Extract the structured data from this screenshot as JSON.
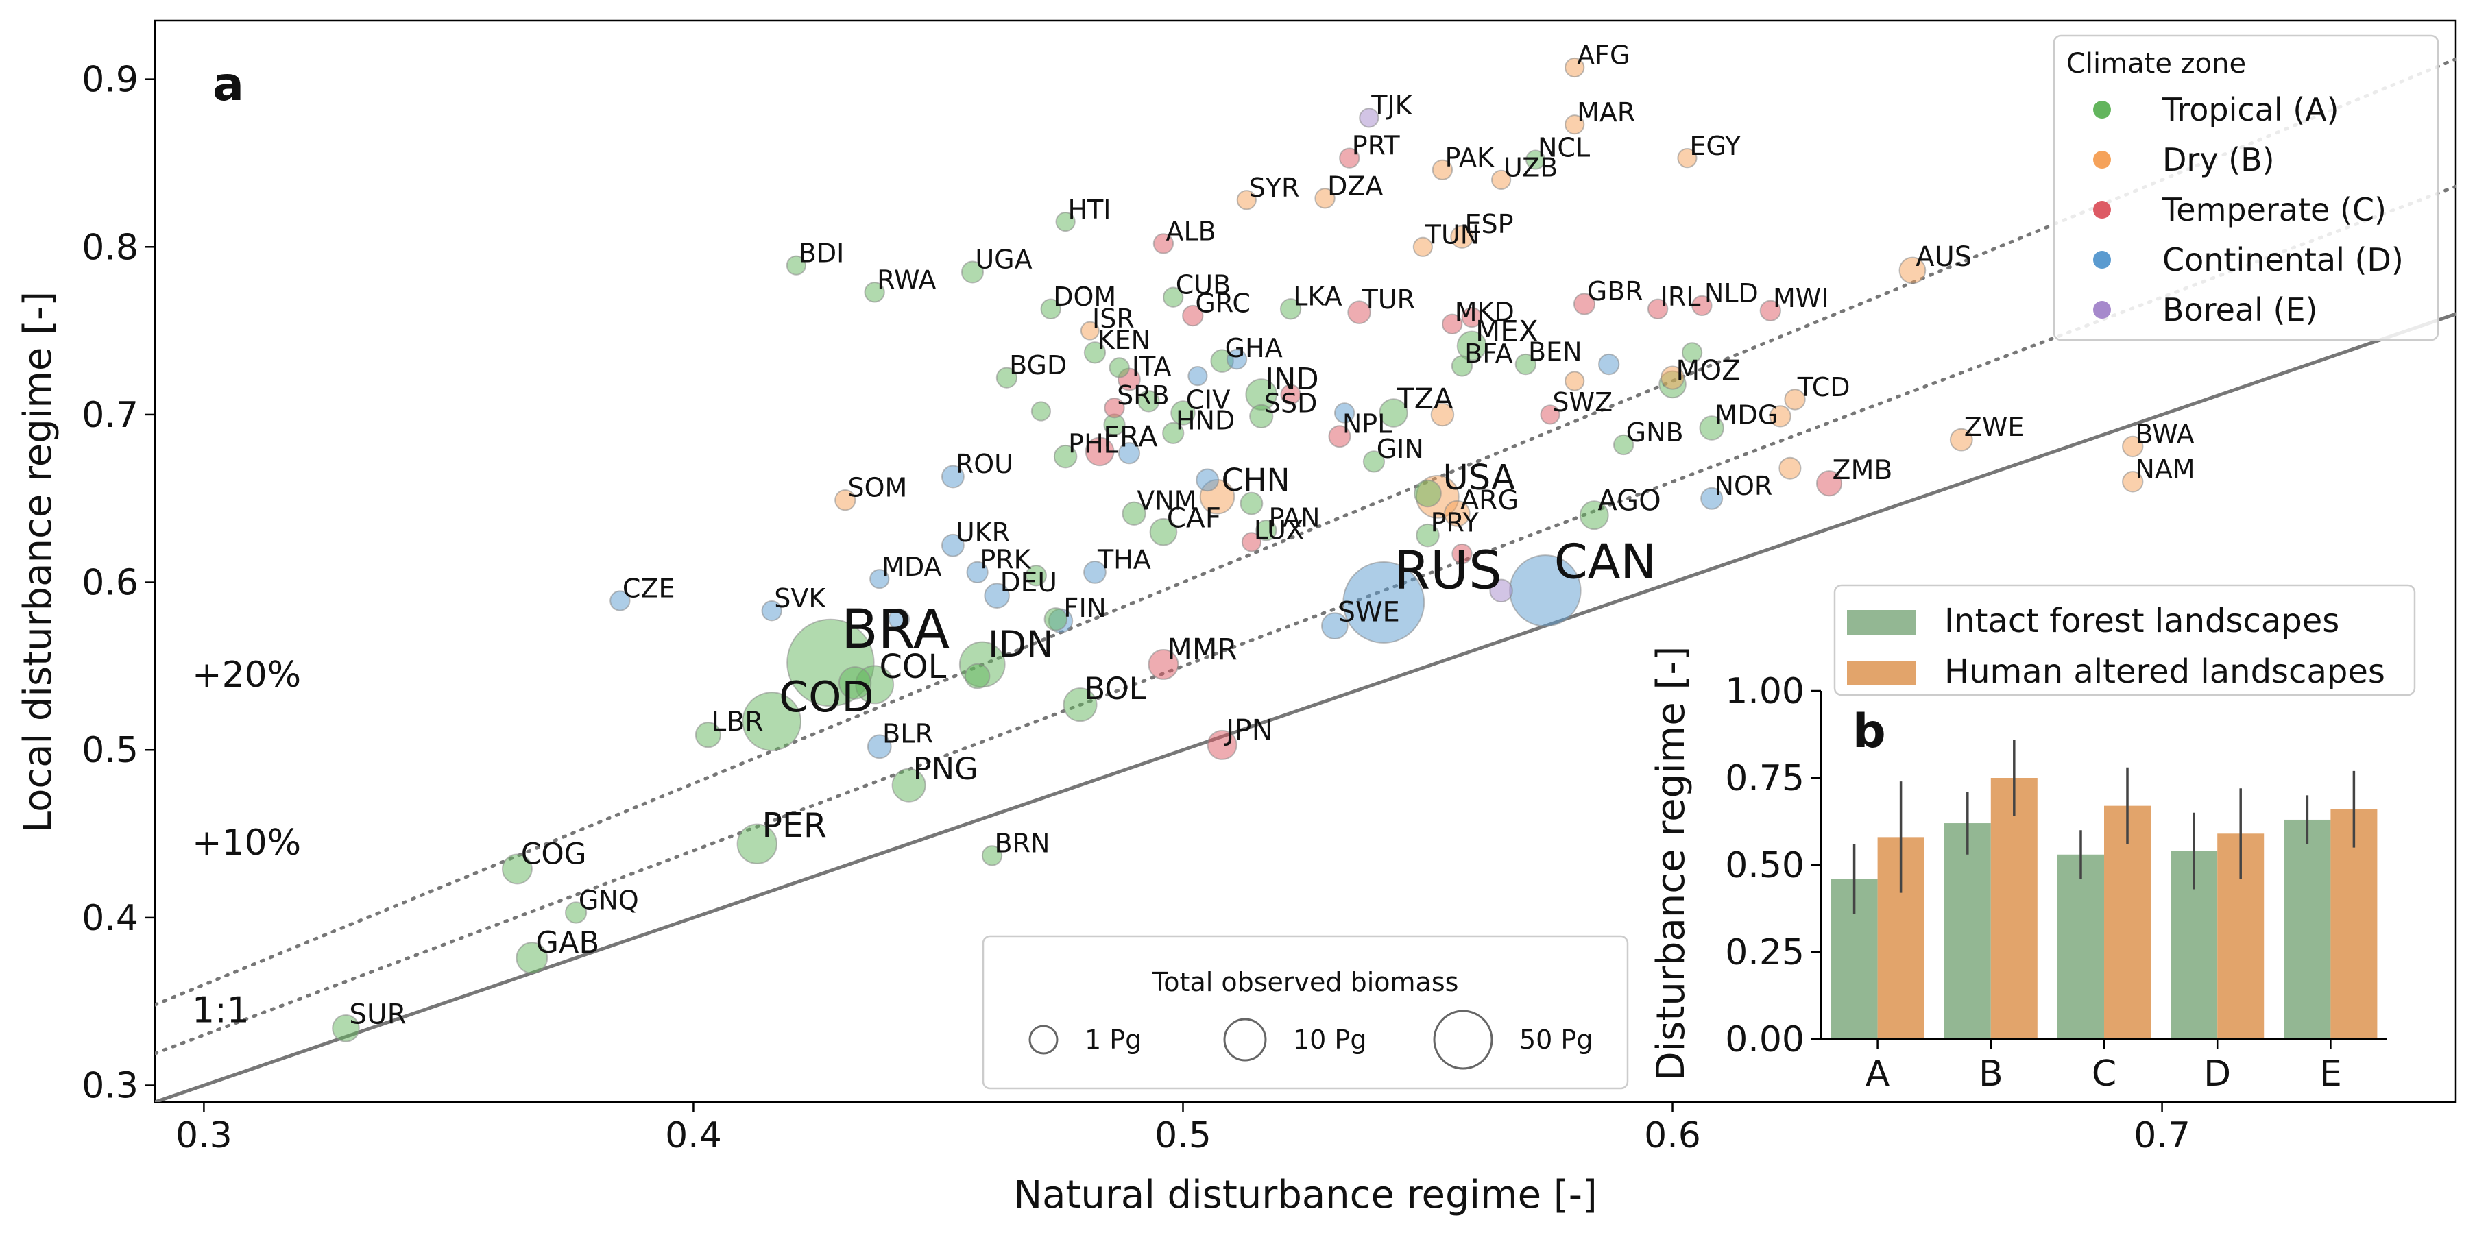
{
  "chart_data": [
    {
      "type": "scatter",
      "panel_label": "a",
      "xlabel": "Natural disturbance regime [-]",
      "ylabel": "Local disturbance regime [-]",
      "xlim": [
        0.29,
        0.76
      ],
      "ylim": [
        0.29,
        0.935
      ],
      "xticks": [
        "0.3",
        "0.4",
        "0.5",
        "0.6",
        "0.7"
      ],
      "yticks": [
        "0.3",
        "0.4",
        "0.5",
        "0.6",
        "0.7",
        "0.8",
        "0.9"
      ],
      "reference_lines": [
        {
          "label": "1:1",
          "factor": 1.0,
          "style": "solid"
        },
        {
          "label": "+10%",
          "factor": 1.1,
          "style": "dotted"
        },
        {
          "label": "+20%",
          "factor": 1.2,
          "style": "dotted"
        }
      ],
      "legend": {
        "title": "Climate zone",
        "position": "top-right",
        "entries": [
          {
            "zone": "A",
            "label": "Tropical (A)",
            "color": "#63b55d"
          },
          {
            "zone": "B",
            "label": "Dry (B)",
            "color": "#f5a25a"
          },
          {
            "zone": "C",
            "label": "Temperate (C)",
            "color": "#dd5a64"
          },
          {
            "zone": "D",
            "label": "Continental (D)",
            "color": "#5b9bd0"
          },
          {
            "zone": "E",
            "label": "Boreal (E)",
            "color": "#a689cc"
          }
        ]
      },
      "size_legend": {
        "title": "Total observed biomass",
        "position": "bottom-center",
        "entries": [
          {
            "label": "1 Pg",
            "value": 1
          },
          {
            "label": "10 Pg",
            "value": 10
          },
          {
            "label": "50 Pg",
            "value": 50
          }
        ]
      },
      "points": [
        {
          "label": "AFG",
          "x": 0.58,
          "y": 0.907,
          "zone": "B",
          "biomass": 0.3
        },
        {
          "label": "TJK",
          "x": 0.538,
          "y": 0.877,
          "zone": "E",
          "biomass": 0.3
        },
        {
          "label": "MAR",
          "x": 0.58,
          "y": 0.873,
          "zone": "B",
          "biomass": 0.3
        },
        {
          "label": "PRT",
          "x": 0.534,
          "y": 0.853,
          "zone": "C",
          "biomass": 0.4
        },
        {
          "label": "PAK",
          "x": 0.553,
          "y": 0.846,
          "zone": "B",
          "biomass": 0.4
        },
        {
          "label": "NCL",
          "x": 0.572,
          "y": 0.852,
          "zone": "A",
          "biomass": 0.3
        },
        {
          "label": "EGY",
          "x": 0.603,
          "y": 0.853,
          "zone": "B",
          "biomass": 0.3
        },
        {
          "label": "UZB",
          "x": 0.565,
          "y": 0.84,
          "zone": "B",
          "biomass": 0.3
        },
        {
          "label": "SYR",
          "x": 0.513,
          "y": 0.828,
          "zone": "B",
          "biomass": 0.3
        },
        {
          "label": "DZA",
          "x": 0.529,
          "y": 0.829,
          "zone": "B",
          "biomass": 0.4
        },
        {
          "label": "HTI",
          "x": 0.476,
          "y": 0.815,
          "zone": "A",
          "biomass": 0.3
        },
        {
          "label": "ALB",
          "x": 0.496,
          "y": 0.802,
          "zone": "C",
          "biomass": 0.4
        },
        {
          "label": "ESP",
          "x": 0.557,
          "y": 0.806,
          "zone": "B",
          "biomass": 0.9
        },
        {
          "label": "TUN",
          "x": 0.549,
          "y": 0.8,
          "zone": "B",
          "biomass": 0.3
        },
        {
          "label": "BDI",
          "x": 0.421,
          "y": 0.789,
          "zone": "A",
          "biomass": 0.3
        },
        {
          "label": "RWA",
          "x": 0.437,
          "y": 0.773,
          "zone": "A",
          "biomass": 0.4
        },
        {
          "label": "UGA",
          "x": 0.457,
          "y": 0.785,
          "zone": "A",
          "biomass": 0.7
        },
        {
          "label": "CUB",
          "x": 0.498,
          "y": 0.77,
          "zone": "A",
          "biomass": 0.4
        },
        {
          "label": "GRC",
          "x": 0.502,
          "y": 0.759,
          "zone": "C",
          "biomass": 0.5
        },
        {
          "label": "LKA",
          "x": 0.522,
          "y": 0.763,
          "zone": "A",
          "biomass": 0.5
        },
        {
          "label": "TUR",
          "x": 0.536,
          "y": 0.761,
          "zone": "C",
          "biomass": 0.9
        },
        {
          "label": "AUS",
          "x": 0.649,
          "y": 0.786,
          "zone": "B",
          "biomass": 1.8
        },
        {
          "label": "DOM",
          "x": 0.473,
          "y": 0.763,
          "zone": "A",
          "biomass": 0.4
        },
        {
          "label": "ISR",
          "x": 0.481,
          "y": 0.75,
          "zone": "B",
          "biomass": 0.2
        },
        {
          "label": "KEN",
          "x": 0.482,
          "y": 0.737,
          "zone": "A",
          "biomass": 0.6
        },
        {
          "label": "MEX",
          "x": 0.559,
          "y": 0.741,
          "zone": "A",
          "biomass": 2.8
        },
        {
          "label": "MKD",
          "x": 0.555,
          "y": 0.754,
          "zone": "C",
          "biomass": 0.4
        },
        {
          "label": "GBR",
          "x": 0.582,
          "y": 0.766,
          "zone": "C",
          "biomass": 0.6
        },
        {
          "label": "IRL",
          "x": 0.597,
          "y": 0.763,
          "zone": "C",
          "biomass": 0.4
        },
        {
          "label": "NLD",
          "x": 0.606,
          "y": 0.765,
          "zone": "C",
          "biomass": 0.4
        },
        {
          "label": "MWI",
          "x": 0.62,
          "y": 0.762,
          "zone": "C",
          "biomass": 0.5
        },
        {
          "label": "BGD",
          "x": 0.464,
          "y": 0.722,
          "zone": "A",
          "biomass": 0.5
        },
        {
          "label": "ITA",
          "x": 0.489,
          "y": 0.721,
          "zone": "C",
          "biomass": 0.8
        },
        {
          "label": "GHA",
          "x": 0.508,
          "y": 0.732,
          "zone": "A",
          "biomass": 0.9
        },
        {
          "label": "IND",
          "x": 0.516,
          "y": 0.712,
          "zone": "A",
          "biomass": 3.5
        },
        {
          "label": "BFA",
          "x": 0.557,
          "y": 0.729,
          "zone": "A",
          "biomass": 0.5
        },
        {
          "label": "BEN",
          "x": 0.57,
          "y": 0.73,
          "zone": "A",
          "biomass": 0.5
        },
        {
          "label": "MOZ",
          "x": 0.6,
          "y": 0.718,
          "zone": "A",
          "biomass": 2.0
        },
        {
          "label": "TCD",
          "x": 0.625,
          "y": 0.709,
          "zone": "B",
          "biomass": 0.5
        },
        {
          "label": "SRB",
          "x": 0.486,
          "y": 0.704,
          "zone": "C",
          "biomass": 0.4
        },
        {
          "label": "CIV",
          "x": 0.5,
          "y": 0.701,
          "zone": "A",
          "biomass": 1.2
        },
        {
          "label": "SSD",
          "x": 0.516,
          "y": 0.699,
          "zone": "A",
          "biomass": 1.0
        },
        {
          "label": "TZA",
          "x": 0.543,
          "y": 0.701,
          "zone": "A",
          "biomass": 2.4
        },
        {
          "label": "MDG",
          "x": 0.608,
          "y": 0.692,
          "zone": "A",
          "biomass": 1.2
        },
        {
          "label": "SWZ",
          "x": 0.575,
          "y": 0.7,
          "zone": "C",
          "biomass": 0.3
        },
        {
          "label": "GNB",
          "x": 0.59,
          "y": 0.682,
          "zone": "A",
          "biomass": 0.4
        },
        {
          "label": "HND",
          "x": 0.498,
          "y": 0.689,
          "zone": "A",
          "biomass": 0.6
        },
        {
          "label": "NPL",
          "x": 0.532,
          "y": 0.687,
          "zone": "C",
          "biomass": 0.7
        },
        {
          "label": "ZWE",
          "x": 0.659,
          "y": 0.685,
          "zone": "B",
          "biomass": 0.8
        },
        {
          "label": "BWA",
          "x": 0.694,
          "y": 0.681,
          "zone": "B",
          "biomass": 0.5
        },
        {
          "label": "FRA",
          "x": 0.483,
          "y": 0.678,
          "zone": "C",
          "biomass": 2.5
        },
        {
          "label": "SOM",
          "x": 0.431,
          "y": 0.649,
          "zone": "B",
          "biomass": 0.5
        },
        {
          "label": "ROU",
          "x": 0.453,
          "y": 0.663,
          "zone": "D",
          "biomass": 0.8
        },
        {
          "label": "PHL",
          "x": 0.476,
          "y": 0.675,
          "zone": "A",
          "biomass": 0.9
        },
        {
          "label": "CHN",
          "x": 0.507,
          "y": 0.651,
          "zone": "B",
          "biomass": 5.0
        },
        {
          "label": "GIN",
          "x": 0.539,
          "y": 0.672,
          "zone": "A",
          "biomass": 0.6
        },
        {
          "label": "USA",
          "x": 0.552,
          "y": 0.651,
          "zone": "B",
          "biomass": 10.0
        },
        {
          "label": "ARG",
          "x": 0.556,
          "y": 0.641,
          "zone": "B",
          "biomass": 1.6
        },
        {
          "label": "AGO",
          "x": 0.584,
          "y": 0.64,
          "zone": "A",
          "biomass": 2.5
        },
        {
          "label": "ZMB",
          "x": 0.632,
          "y": 0.659,
          "zone": "C",
          "biomass": 1.5
        },
        {
          "label": "NOR",
          "x": 0.608,
          "y": 0.65,
          "zone": "D",
          "biomass": 0.7
        },
        {
          "label": "NAM",
          "x": 0.694,
          "y": 0.66,
          "zone": "B",
          "biomass": 0.5
        },
        {
          "label": "VNM",
          "x": 0.49,
          "y": 0.641,
          "zone": "A",
          "biomass": 1.0
        },
        {
          "label": "PAN",
          "x": 0.517,
          "y": 0.631,
          "zone": "A",
          "biomass": 0.5
        },
        {
          "label": "PRY",
          "x": 0.55,
          "y": 0.628,
          "zone": "A",
          "biomass": 0.9
        },
        {
          "label": "CAF",
          "x": 0.496,
          "y": 0.63,
          "zone": "A",
          "biomass": 2.0
        },
        {
          "label": "LUX",
          "x": 0.514,
          "y": 0.624,
          "zone": "C",
          "biomass": 0.3
        },
        {
          "label": "UKR",
          "x": 0.453,
          "y": 0.622,
          "zone": "D",
          "biomass": 0.8
        },
        {
          "label": "MDA",
          "x": 0.438,
          "y": 0.602,
          "zone": "D",
          "biomass": 0.3
        },
        {
          "label": "PRK",
          "x": 0.458,
          "y": 0.606,
          "zone": "D",
          "biomass": 0.6
        },
        {
          "label": "DEU",
          "x": 0.462,
          "y": 0.592,
          "zone": "D",
          "biomass": 1.4
        },
        {
          "label": "THA",
          "x": 0.482,
          "y": 0.606,
          "zone": "D",
          "biomass": 0.8
        },
        {
          "label": "CZE",
          "x": 0.385,
          "y": 0.589,
          "zone": "D",
          "biomass": 0.4
        },
        {
          "label": "SVK",
          "x": 0.416,
          "y": 0.583,
          "zone": "D",
          "biomass": 0.4
        },
        {
          "label": "RUS",
          "x": 0.541,
          "y": 0.588,
          "zone": "D",
          "biomass": 55.0
        },
        {
          "label": "CAN",
          "x": 0.574,
          "y": 0.595,
          "zone": "D",
          "biomass": 40.0
        },
        {
          "label": "SWE",
          "x": 0.531,
          "y": 0.574,
          "zone": "D",
          "biomass": 1.8
        },
        {
          "label": "BRA",
          "x": 0.428,
          "y": 0.552,
          "zone": "A",
          "biomass": 65.0
        },
        {
          "label": "IDN",
          "x": 0.459,
          "y": 0.551,
          "zone": "A",
          "biomass": 12.0
        },
        {
          "label": "FIN",
          "x": 0.475,
          "y": 0.577,
          "zone": "D",
          "biomass": 1.2
        },
        {
          "label": "MMR",
          "x": 0.496,
          "y": 0.551,
          "zone": "C",
          "biomass": 3.0
        },
        {
          "label": "COL",
          "x": 0.437,
          "y": 0.539,
          "zone": "A",
          "biomass": 7.0
        },
        {
          "label": "COD",
          "x": 0.416,
          "y": 0.517,
          "zone": "A",
          "biomass": 24.0
        },
        {
          "label": "BOL",
          "x": 0.479,
          "y": 0.527,
          "zone": "A",
          "biomass": 4.5
        },
        {
          "label": "LBR",
          "x": 0.403,
          "y": 0.509,
          "zone": "A",
          "biomass": 1.5
        },
        {
          "label": "BLR",
          "x": 0.438,
          "y": 0.502,
          "zone": "D",
          "biomass": 1.1
        },
        {
          "label": "JPN",
          "x": 0.508,
          "y": 0.503,
          "zone": "C",
          "biomass": 2.8
        },
        {
          "label": "PNG",
          "x": 0.444,
          "y": 0.479,
          "zone": "A",
          "biomass": 4.5
        },
        {
          "label": "PER",
          "x": 0.413,
          "y": 0.444,
          "zone": "A",
          "biomass": 8.0
        },
        {
          "label": "BRN",
          "x": 0.461,
          "y": 0.437,
          "zone": "A",
          "biomass": 0.4
        },
        {
          "label": "COG",
          "x": 0.364,
          "y": 0.429,
          "zone": "A",
          "biomass": 3.0
        },
        {
          "label": "GNQ",
          "x": 0.376,
          "y": 0.403,
          "zone": "A",
          "biomass": 0.6
        },
        {
          "label": "GAB",
          "x": 0.367,
          "y": 0.376,
          "zone": "A",
          "biomass": 3.5
        },
        {
          "label": "SUR",
          "x": 0.329,
          "y": 0.334,
          "zone": "A",
          "biomass": 2.0
        }
      ],
      "unlabeled_points": [
        {
          "x": 0.6,
          "y": 0.722,
          "zone": "B",
          "biomass": 1.0
        },
        {
          "x": 0.553,
          "y": 0.7,
          "zone": "B",
          "biomass": 0.9
        },
        {
          "x": 0.559,
          "y": 0.758,
          "zone": "C",
          "biomass": 0.4
        },
        {
          "x": 0.58,
          "y": 0.72,
          "zone": "B",
          "biomass": 0.3
        },
        {
          "x": 0.622,
          "y": 0.699,
          "zone": "B",
          "biomass": 0.6
        },
        {
          "x": 0.624,
          "y": 0.668,
          "zone": "B",
          "biomass": 0.7
        },
        {
          "x": 0.514,
          "y": 0.647,
          "zone": "A",
          "biomass": 0.8
        },
        {
          "x": 0.511,
          "y": 0.733,
          "zone": "D",
          "biomass": 0.4
        },
        {
          "x": 0.486,
          "y": 0.694,
          "zone": "A",
          "biomass": 0.6
        },
        {
          "x": 0.493,
          "y": 0.708,
          "zone": "A",
          "biomass": 0.6
        },
        {
          "x": 0.47,
          "y": 0.604,
          "zone": "A",
          "biomass": 0.5
        },
        {
          "x": 0.503,
          "y": 0.723,
          "zone": "D",
          "biomass": 0.3
        },
        {
          "x": 0.487,
          "y": 0.728,
          "zone": "A",
          "biomass": 0.4
        },
        {
          "x": 0.505,
          "y": 0.661,
          "zone": "D",
          "biomass": 0.8
        },
        {
          "x": 0.489,
          "y": 0.677,
          "zone": "D",
          "biomass": 0.6
        },
        {
          "x": 0.474,
          "y": 0.578,
          "zone": "A",
          "biomass": 0.9
        },
        {
          "x": 0.458,
          "y": 0.544,
          "zone": "A",
          "biomass": 1.4
        },
        {
          "x": 0.433,
          "y": 0.54,
          "zone": "A",
          "biomass": 4.0
        },
        {
          "x": 0.442,
          "y": 0.578,
          "zone": "D",
          "biomass": 0.5
        },
        {
          "x": 0.471,
          "y": 0.702,
          "zone": "A",
          "biomass": 0.3
        },
        {
          "x": 0.557,
          "y": 0.617,
          "zone": "C",
          "biomass": 0.4
        },
        {
          "x": 0.565,
          "y": 0.595,
          "zone": "E",
          "biomass": 0.9
        },
        {
          "x": 0.587,
          "y": 0.73,
          "zone": "D",
          "biomass": 0.5
        },
        {
          "x": 0.533,
          "y": 0.701,
          "zone": "D",
          "biomass": 0.4
        },
        {
          "x": 0.604,
          "y": 0.737,
          "zone": "A",
          "biomass": 0.4
        },
        {
          "x": 0.522,
          "y": 0.712,
          "zone": "C",
          "biomass": 0.4
        },
        {
          "x": 0.55,
          "y": 0.653,
          "zone": "A",
          "biomass": 2.0
        }
      ]
    },
    {
      "type": "bar",
      "panel_label": "b",
      "categories": [
        "A",
        "B",
        "C",
        "D",
        "E"
      ],
      "ylabel": "Disturbance regime [-]",
      "ylim": [
        0,
        1.0
      ],
      "yticks": [
        "0.00",
        "0.25",
        "0.50",
        "0.75",
        "1.00"
      ],
      "legend_position": "top",
      "series": [
        {
          "name": "Intact forest landscapes",
          "color": "#93b793",
          "values": [
            0.46,
            0.62,
            0.53,
            0.54,
            0.63
          ],
          "error": [
            0.1,
            0.09,
            0.07,
            0.11,
            0.07
          ]
        },
        {
          "name": "Human altered landscapes",
          "color": "#e2a46b",
          "values": [
            0.58,
            0.75,
            0.67,
            0.59,
            0.66
          ],
          "error": [
            0.16,
            0.11,
            0.11,
            0.13,
            0.11
          ]
        }
      ]
    }
  ]
}
